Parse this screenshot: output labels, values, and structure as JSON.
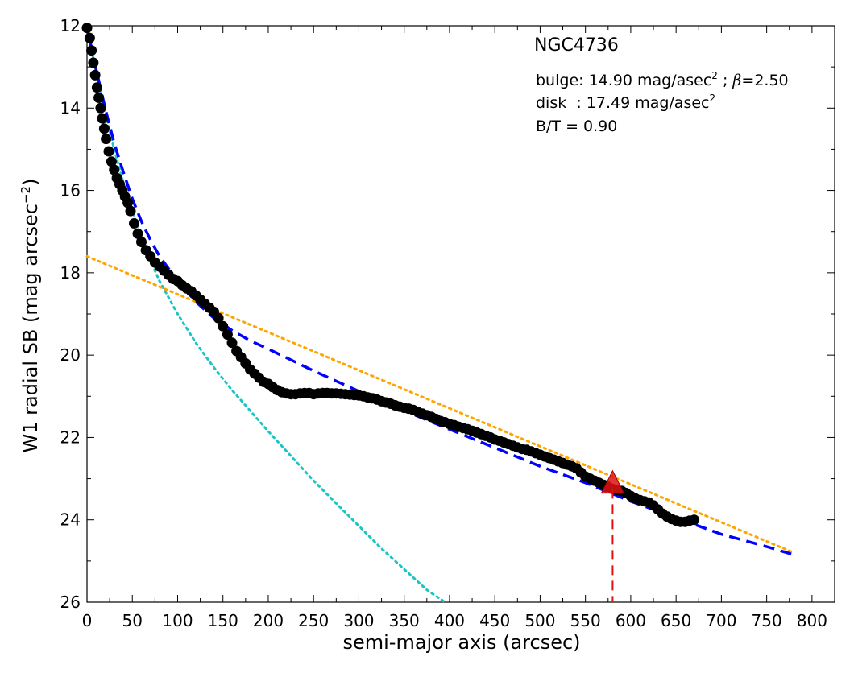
{
  "chart_data": {
    "type": "scatter",
    "title": "",
    "xlabel": "semi-major axis (arcsec)",
    "ylabel": "W1 radial SB (mag arcsec",
    "ylabel_sup": "−2",
    "ylabel_close": ")",
    "xlim": [
      0,
      825
    ],
    "ylim": [
      12,
      26
    ],
    "y_inverted": true,
    "grid": false,
    "legend": "none",
    "xticks": [
      0,
      50,
      100,
      150,
      200,
      250,
      300,
      350,
      400,
      450,
      500,
      550,
      600,
      650,
      700,
      750,
      800
    ],
    "yticks": [
      12,
      14,
      16,
      18,
      20,
      22,
      24,
      26
    ],
    "annotations": {
      "galaxy": "NGC4736",
      "bulge_prefix": "bulge: 14.90 mag/asec",
      "bulge_sup": "2",
      "bulge_suffix": " ; ",
      "beta_symbol": "β",
      "beta_value": "=2.50",
      "disk_prefix": "disk  : 17.49 mag/asec",
      "disk_sup": "2",
      "bt": "B/T = 0.90"
    },
    "colors": {
      "data": "#000000",
      "bulge": "#1cc4c4",
      "disk": "#ffa500",
      "total": "#0000ff",
      "marker": "#e01010"
    },
    "series": [
      {
        "kind": "data",
        "x": [
          0,
          3,
          5,
          7,
          9,
          11,
          13,
          15,
          17,
          19,
          21,
          24,
          27,
          30,
          33,
          36,
          39,
          42,
          45,
          48,
          52,
          56,
          60,
          65,
          70,
          75,
          80,
          85,
          90,
          95,
          100,
          105,
          110,
          115,
          120,
          125,
          130,
          135,
          140,
          145,
          150,
          155,
          160,
          165,
          170,
          175,
          180,
          185,
          190,
          195,
          200,
          205,
          210,
          215,
          220,
          225,
          230,
          235,
          240,
          245,
          250,
          255,
          260,
          265,
          270,
          275,
          280,
          285,
          290,
          295,
          300,
          305,
          310,
          315,
          320,
          325,
          330,
          335,
          340,
          345,
          350,
          355,
          360,
          365,
          370,
          375,
          380,
          385,
          390,
          395,
          400,
          405,
          410,
          415,
          420,
          425,
          430,
          435,
          440,
          445,
          450,
          455,
          460,
          465,
          470,
          475,
          480,
          485,
          490,
          495,
          500,
          505,
          510,
          515,
          520,
          525,
          530,
          535,
          540,
          545,
          550,
          555,
          560,
          565,
          570,
          575,
          580,
          585,
          590,
          595,
          600,
          605,
          610,
          615,
          620,
          625,
          630,
          635,
          640,
          645,
          650,
          655,
          660,
          665,
          670
        ],
        "y": [
          12.05,
          12.3,
          12.6,
          12.9,
          13.2,
          13.5,
          13.75,
          14.0,
          14.25,
          14.5,
          14.75,
          15.05,
          15.3,
          15.5,
          15.7,
          15.85,
          16.0,
          16.15,
          16.3,
          16.5,
          16.8,
          17.05,
          17.25,
          17.45,
          17.6,
          17.75,
          17.85,
          17.95,
          18.05,
          18.15,
          18.2,
          18.3,
          18.38,
          18.45,
          18.55,
          18.65,
          18.75,
          18.85,
          18.95,
          19.1,
          19.3,
          19.5,
          19.7,
          19.9,
          20.05,
          20.2,
          20.35,
          20.45,
          20.55,
          20.65,
          20.7,
          20.78,
          20.85,
          20.9,
          20.93,
          20.95,
          20.95,
          20.93,
          20.92,
          20.92,
          20.95,
          20.93,
          20.92,
          20.92,
          20.93,
          20.93,
          20.94,
          20.95,
          20.96,
          20.97,
          20.98,
          21.0,
          21.03,
          21.05,
          21.08,
          21.12,
          21.15,
          21.18,
          21.22,
          21.25,
          21.28,
          21.3,
          21.33,
          21.38,
          21.42,
          21.46,
          21.5,
          21.55,
          21.6,
          21.63,
          21.67,
          21.7,
          21.74,
          21.77,
          21.8,
          21.84,
          21.88,
          21.92,
          21.96,
          22.0,
          22.05,
          22.08,
          22.12,
          22.16,
          22.2,
          22.24,
          22.28,
          22.3,
          22.34,
          22.38,
          22.42,
          22.46,
          22.5,
          22.54,
          22.58,
          22.62,
          22.66,
          22.7,
          22.75,
          22.85,
          22.95,
          23.0,
          23.05,
          23.1,
          23.15,
          23.2,
          23.25,
          23.28,
          23.3,
          23.35,
          23.42,
          23.48,
          23.52,
          23.55,
          23.58,
          23.65,
          23.75,
          23.85,
          23.92,
          23.98,
          24.02,
          24.05,
          24.05,
          24.02,
          24.0
        ]
      },
      {
        "kind": "bulge",
        "x": [
          0,
          5,
          10,
          20,
          30,
          40,
          50,
          60,
          70,
          80,
          100,
          120,
          140,
          160,
          180,
          200,
          225,
          250,
          275,
          300,
          325,
          350,
          375,
          395
        ],
        "y": [
          12.0,
          12.6,
          13.1,
          14.1,
          15.0,
          15.8,
          16.5,
          17.15,
          17.7,
          18.2,
          19.0,
          19.7,
          20.3,
          20.85,
          21.35,
          21.85,
          22.45,
          23.05,
          23.6,
          24.15,
          24.7,
          25.2,
          25.7,
          26.0
        ]
      },
      {
        "kind": "disk",
        "x": [
          0,
          780
        ],
        "y": [
          17.6,
          24.8
        ]
      },
      {
        "kind": "total",
        "x": [
          0,
          5,
          10,
          20,
          30,
          40,
          50,
          60,
          70,
          80,
          100,
          120,
          140,
          160,
          180,
          200,
          250,
          300,
          350,
          400,
          450,
          500,
          550,
          600,
          650,
          700,
          750,
          780
        ],
        "y": [
          12.0,
          12.55,
          13.05,
          14.0,
          14.85,
          15.55,
          16.2,
          16.75,
          17.2,
          17.6,
          18.2,
          18.7,
          19.1,
          19.4,
          19.65,
          19.85,
          20.38,
          20.88,
          21.35,
          21.8,
          22.25,
          22.7,
          23.1,
          23.55,
          23.95,
          24.35,
          24.65,
          24.85
        ]
      }
    ],
    "marker": {
      "x": 580,
      "y": 23.1
    },
    "marker_line": {
      "x": 580,
      "y_top": 23.25,
      "y_bottom": 26.0
    }
  }
}
